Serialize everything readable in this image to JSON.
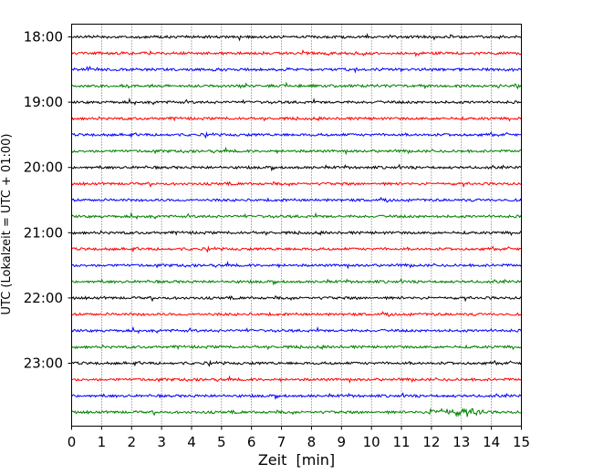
{
  "chart_data": {
    "type": "line",
    "title": "",
    "xlabel": "Zeit  [min]",
    "ylabel": "UTC (Lokalzeit = UTC + 01:00)",
    "xlim": [
      0,
      15
    ],
    "x_ticks": [
      "0",
      "1",
      "2",
      "3",
      "4",
      "5",
      "6",
      "7",
      "8",
      "9",
      "10",
      "11",
      "12",
      "13",
      "14",
      "15"
    ],
    "y_tick_labels": [
      "18:00",
      "19:00",
      "20:00",
      "21:00",
      "22:00",
      "23:00"
    ],
    "grid": "vertical dotted",
    "trace_start_times": [
      "18:00",
      "18:15",
      "18:30",
      "18:45",
      "19:00",
      "19:15",
      "19:30",
      "19:45",
      "20:00",
      "20:15",
      "20:30",
      "20:45",
      "21:00",
      "21:15",
      "21:30",
      "21:45",
      "22:00",
      "22:15",
      "22:30",
      "22:45",
      "23:00",
      "23:15",
      "23:30",
      "23:45"
    ],
    "trace_minutes": 15,
    "trace_colors": [
      "#000000",
      "#ff0000",
      "#0000ff",
      "#008000"
    ],
    "colors": {
      "axis": "#000000",
      "grid": "#000000",
      "background": "#ffffff"
    }
  }
}
